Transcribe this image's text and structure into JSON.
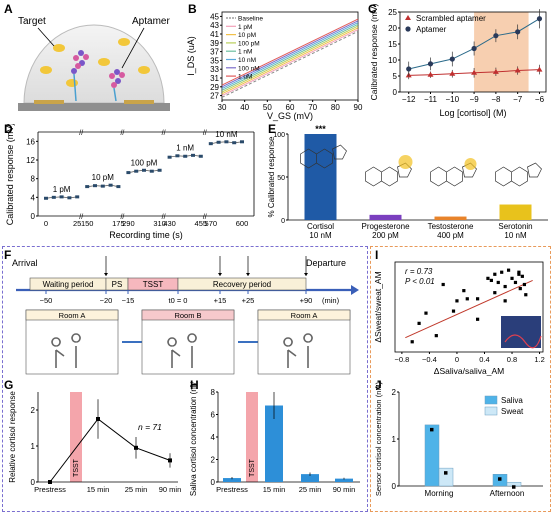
{
  "panel_labels": {
    "A": "A",
    "B": "B",
    "C": "C",
    "D": "D",
    "E": "E",
    "F": "F",
    "G": "G",
    "H": "H",
    "I": "I",
    "J": "J"
  },
  "panelA": {
    "target_label": "Target",
    "aptamer_label": "Aptamer"
  },
  "chart_data": [
    {
      "id": "B",
      "type": "line",
      "xlabel": "V_GS (mV)",
      "ylabel": "I_DS (uA)",
      "xlim": [
        30,
        90
      ],
      "ylim": [
        26,
        46
      ],
      "xticks": [
        30,
        40,
        50,
        60,
        70,
        80,
        90
      ],
      "yticks": [
        27,
        29,
        31,
        33,
        35,
        37,
        39,
        41,
        43,
        45
      ],
      "legend": [
        "Baseline",
        "1 pM",
        "10 pM",
        "100 pM",
        "1 nM",
        "10 nM",
        "100 nM",
        "1 uM"
      ],
      "colors": [
        "#8a8a8a",
        "#f2a0b8",
        "#f2c14a",
        "#b9cf5a",
        "#6cc0a0",
        "#5aa9dc",
        "#7b6cc9",
        "#e05a5a"
      ],
      "series": [
        {
          "name": "Baseline",
          "x": [
            30,
            90
          ],
          "y": [
            26.6,
            41.6
          ]
        },
        {
          "name": "1 pM",
          "x": [
            30,
            90
          ],
          "y": [
            27.0,
            42.0
          ]
        },
        {
          "name": "10 pM",
          "x": [
            30,
            90
          ],
          "y": [
            27.4,
            42.4
          ]
        },
        {
          "name": "100 pM",
          "x": [
            30,
            90
          ],
          "y": [
            27.8,
            42.8
          ]
        },
        {
          "name": "1 nM",
          "x": [
            30,
            90
          ],
          "y": [
            28.2,
            43.2
          ]
        },
        {
          "name": "10 nM",
          "x": [
            30,
            90
          ],
          "y": [
            28.6,
            43.6
          ]
        },
        {
          "name": "100 nM",
          "x": [
            30,
            90
          ],
          "y": [
            29.0,
            44.0
          ]
        },
        {
          "name": "1 uM",
          "x": [
            30,
            90
          ],
          "y": [
            29.4,
            44.4
          ]
        }
      ]
    },
    {
      "id": "C",
      "type": "scatter",
      "xlabel": "Log [cortisol] (M)",
      "ylabel": "Calibrated response (mV)",
      "xlim": [
        -12.4,
        -5.7
      ],
      "ylim": [
        0,
        25
      ],
      "xticks": [
        -12,
        -11,
        -10,
        -9,
        -8,
        -7,
        -6
      ],
      "yticks": [
        0,
        5,
        10,
        15,
        20,
        25
      ],
      "shaded_range": [
        -9,
        -6.5
      ],
      "series": [
        {
          "name": "Scrambled aptamer",
          "x": [
            -12,
            -11,
            -10,
            -9,
            -8,
            -7,
            -6
          ],
          "y": [
            5.2,
            5.4,
            5.7,
            6.0,
            6.3,
            6.7,
            7.0
          ],
          "err": [
            1.2,
            1.0,
            1.2,
            1.5,
            1.3,
            1.3,
            1.5
          ]
        },
        {
          "name": "Aptamer",
          "x": [
            -12,
            -11,
            -10,
            -9,
            -8,
            -7,
            -6
          ],
          "y": [
            7.2,
            8.8,
            10.3,
            13.6,
            17.6,
            18.8,
            22.9
          ],
          "err": [
            2.3,
            2.0,
            2.3,
            2.2,
            2.0,
            2.3,
            3.0
          ]
        }
      ]
    },
    {
      "id": "D",
      "type": "scatter",
      "xlabel": "Recording time (s)",
      "ylabel": "Calibrated response (mV)",
      "ylim": [
        0,
        18
      ],
      "yticks": [
        0,
        4,
        8,
        12,
        16
      ],
      "xticks": [
        "0",
        "25",
        "150",
        "175",
        "290",
        "310",
        "430",
        "455",
        "570",
        "600"
      ],
      "groups": [
        {
          "label": "1 pM",
          "y": [
            3.8,
            4.0,
            4.1,
            3.9,
            4.1
          ]
        },
        {
          "label": "10 pM",
          "y": [
            6.3,
            6.5,
            6.4,
            6.6,
            6.3
          ]
        },
        {
          "label": "100 pM",
          "y": [
            9.3,
            9.6,
            9.8,
            9.6,
            9.8
          ]
        },
        {
          "label": "1 nM",
          "y": [
            12.6,
            12.9,
            12.8,
            13.0,
            12.8
          ]
        },
        {
          "label": "10 nM",
          "y": [
            15.5,
            15.8,
            15.9,
            15.7,
            15.9
          ]
        }
      ]
    },
    {
      "id": "E",
      "type": "bar",
      "ylabel": "% Calibrated response",
      "ylim": [
        0,
        100
      ],
      "categories": [
        "Cortisol",
        "Progesterone",
        "Testosterone",
        "Serotonin"
      ],
      "concentrations": [
        "10 nM",
        "200 pM",
        "400 pM",
        "10 nM"
      ],
      "values": [
        100,
        6,
        4,
        18
      ],
      "colors": [
        "#1f5aa6",
        "#7b3fbf",
        "#e8832a",
        "#e8c21c"
      ],
      "significance": "***"
    },
    {
      "id": "G",
      "type": "line",
      "xlabel": "",
      "ylabel": "Relative cortisol response",
      "ylim": [
        0,
        2.5
      ],
      "yticks": [
        0,
        1,
        2
      ],
      "categories": [
        "Prestress",
        "15 min",
        "25 min",
        "90 min"
      ],
      "values": [
        0,
        1.75,
        0.95,
        0.6
      ],
      "err": [
        0,
        0.55,
        0.3,
        0.2
      ],
      "annotation": "n = 71",
      "band_label": "TSST"
    },
    {
      "id": "H",
      "type": "bar",
      "xlabel": "",
      "ylabel": "Saliva cortisol concentration (nM)",
      "ylim": [
        0,
        8
      ],
      "yticks": [
        0,
        2,
        4,
        6,
        8
      ],
      "categories": [
        "Prestress",
        "15 min",
        "25 min",
        "90 min"
      ],
      "values": [
        0.35,
        6.8,
        0.7,
        0.3
      ],
      "err": [
        0.1,
        1.2,
        0.15,
        0.08
      ],
      "band_label": "TSST"
    },
    {
      "id": "I",
      "type": "scatter",
      "xlabel": "ΔSaliva/saliva_AM",
      "ylabel": "ΔSweat/sweat_AM",
      "xlim": [
        -0.9,
        1.25
      ],
      "ylim": [
        -1.1,
        1.1
      ],
      "xticks": [
        -0.8,
        -0.4,
        0,
        0.4,
        0.8,
        1.2
      ],
      "annotations": [
        "r = 0.73",
        "P < 0.01"
      ],
      "x": [
        -0.65,
        -0.55,
        -0.45,
        -0.3,
        -0.2,
        -0.05,
        0.0,
        0.1,
        0.15,
        0.3,
        0.45,
        0.5,
        0.55,
        0.6,
        0.65,
        0.7,
        0.75,
        0.8,
        0.85,
        0.9,
        0.92,
        0.95,
        0.98,
        1.0,
        0.55,
        0.7,
        0.9,
        0.3
      ],
      "y": [
        -0.85,
        -0.4,
        -0.15,
        -0.7,
        0.55,
        -0.1,
        0.15,
        0.4,
        0.2,
        -0.3,
        0.7,
        0.65,
        0.8,
        0.6,
        0.85,
        0.5,
        0.9,
        0.7,
        0.6,
        0.85,
        0.45,
        0.75,
        0.55,
        0.3,
        0.35,
        0.15,
        0.8,
        0.2
      ],
      "fit": {
        "x": [
          -0.75,
          1.1
        ],
        "y": [
          -0.75,
          0.65
        ]
      }
    },
    {
      "id": "J",
      "type": "bar",
      "xlabel": "",
      "ylabel": "Sensor cortisol concentration (nM)",
      "ylim": [
        0,
        2
      ],
      "yticks": [
        0,
        1,
        2
      ],
      "categories": [
        "Morning",
        "Afternoon"
      ],
      "series": [
        {
          "name": "Saliva",
          "values": [
            1.3,
            0.25
          ],
          "color": "#4fb3e8"
        },
        {
          "name": "Sweat",
          "values": [
            0.38,
            0.08
          ],
          "color": "#cde8f7"
        }
      ]
    }
  ],
  "panelE_ticks": {
    "y": [
      "0",
      "50",
      "100"
    ]
  },
  "panelF": {
    "arrival": "Arrival",
    "departure": "Departure",
    "waiting": "Waiting period",
    "ps": "PS",
    "tsst": "TSST",
    "recovery": "Recovery period",
    "ticks": [
      "−50",
      "−20",
      "−15",
      "t0 = 0",
      "+15",
      "+25",
      "+90"
    ],
    "unit": "(min)",
    "rooms": [
      "Room A",
      "Room B",
      "Room A"
    ]
  }
}
